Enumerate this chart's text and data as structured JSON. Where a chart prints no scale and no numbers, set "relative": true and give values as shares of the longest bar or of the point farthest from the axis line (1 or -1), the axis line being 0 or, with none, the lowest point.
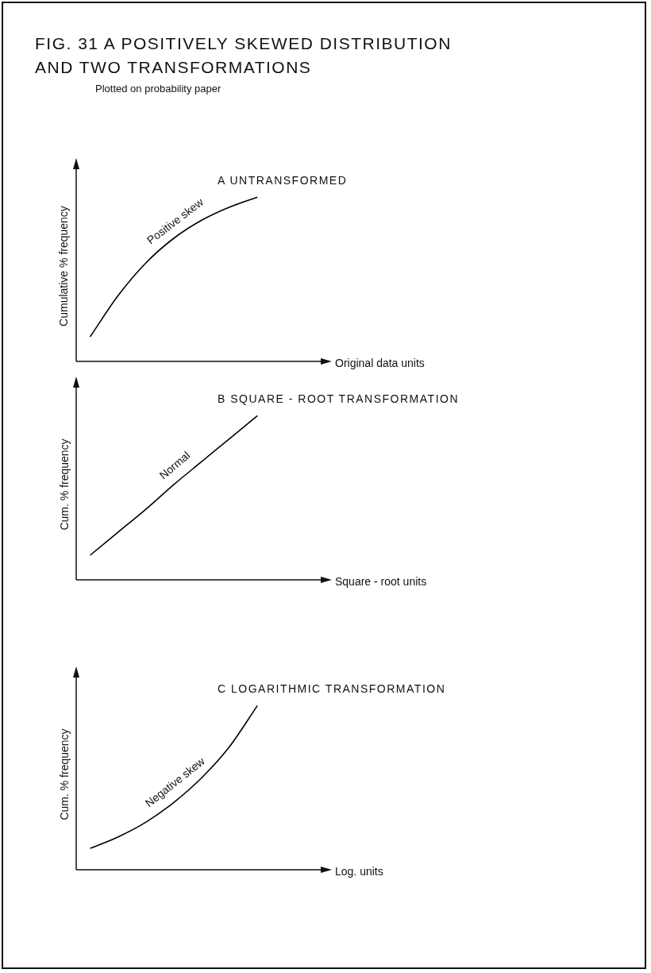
{
  "chart_data": [
    {
      "type": "other",
      "title": "FIG. 31  A POSITIVELY SKEWED DISTRIBUTION AND TWO TRANSFORMATIONS",
      "subtitle": "Plotted on probability paper"
    },
    {
      "type": "line",
      "title": "A  UNTRANSFORMED",
      "xlabel": "Original data units",
      "ylabel": "Cumulative % frequency",
      "relative": true,
      "marker": "none",
      "line_style": "solid",
      "legend": false,
      "tick_labels": false,
      "annotations": [
        "Positive skew"
      ],
      "categories": [
        null,
        null,
        null,
        null,
        null,
        null,
        null,
        null,
        null
      ],
      "series": [
        {
          "color": "#000000",
          "values": [
            0.15,
            0.4,
            0.6,
            0.75,
            0.86,
            0.94,
            1.0,
            null,
            null
          ]
        }
      ]
    },
    {
      "type": "line",
      "title": "B  SQUARE - ROOT TRANSFORMATION",
      "xlabel": "Square - root units",
      "ylabel": "Cum. % frequency",
      "relative": true,
      "marker": "none",
      "line_style": "solid",
      "legend": false,
      "tick_labels": false,
      "annotations": [
        "Normal"
      ],
      "categories": [
        null,
        null,
        null,
        null,
        null,
        null,
        null,
        null,
        null
      ],
      "series": [
        {
          "color": "#000000",
          "values": [
            0.15,
            0.29,
            0.43,
            0.58,
            0.72,
            0.86,
            1.0,
            null,
            null
          ]
        }
      ]
    },
    {
      "type": "line",
      "title": "C  LOGARITHMIC TRANSFORMATION",
      "xlabel": "Log. units",
      "ylabel": "Cum. % frequency",
      "relative": true,
      "marker": "none",
      "line_style": "solid",
      "legend": false,
      "tick_labels": false,
      "annotations": [
        "Negative skew"
      ],
      "categories": [
        null,
        null,
        null,
        null,
        null,
        null,
        null,
        null,
        null
      ],
      "series": [
        {
          "color": "#000000",
          "values": [
            0.13,
            0.2,
            0.29,
            0.41,
            0.56,
            0.75,
            1.0,
            null,
            null
          ]
        }
      ]
    }
  ]
}
